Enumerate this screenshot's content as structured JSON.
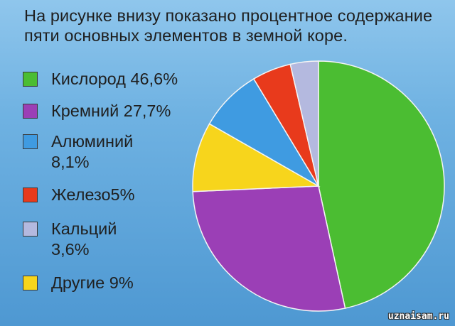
{
  "title": "На рисунке внизу показано процентное содержание пяти основных элементов в земной коре.",
  "watermark": "uznaisam.ru",
  "chart_data": {
    "type": "pie",
    "title": "На рисунке внизу показано процентное содержание пяти основных элементов в земной коре.",
    "categories": [
      "Кислород",
      "Кремний",
      "Алюминий",
      "Железо",
      "Кальций",
      "Другие"
    ],
    "values": [
      46.6,
      27.7,
      8.1,
      5,
      3.6,
      9
    ],
    "legend_labels": [
      "Кислород 46,6%",
      "Кремний  27,7%",
      "Алюминий\n8,1%",
      "Железо5%",
      "Кальций\n3,6%",
      "Другие 9%"
    ],
    "colors": [
      "#4bbd32",
      "#9b3fb6",
      "#3f9be1",
      "#e83a1c",
      "#b4b9df",
      "#f7d51c"
    ],
    "legend_placement": "left",
    "slice_order_clockwise_from_top": [
      "Кислород",
      "Кремний",
      "Другие",
      "Алюминий",
      "Железо",
      "Кальций"
    ]
  }
}
